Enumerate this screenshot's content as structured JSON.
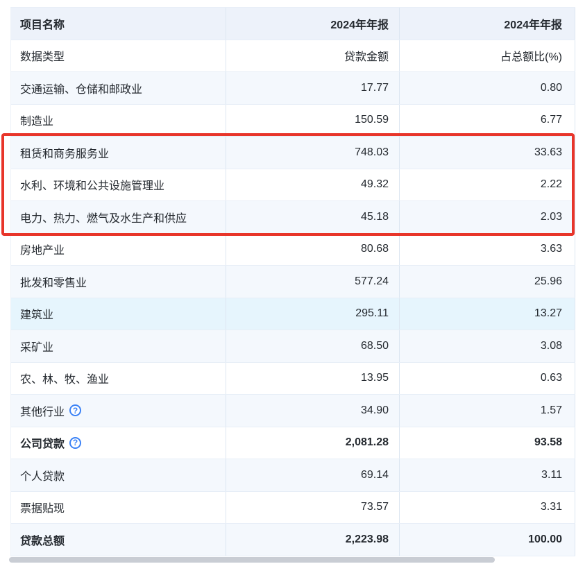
{
  "colors": {
    "header_row_bg": "#edf2fa",
    "stripe_row_bg": "#f4f8fd",
    "white_row_bg": "#ffffff",
    "highlight_row_bg": "#e6f5fd",
    "row_border": "#e7eef7",
    "column_divider": "#dce6f1",
    "text": "#24292f",
    "red_annotation_box": "#e8352a",
    "help_icon_blue": "#3b82f6",
    "scrollbar_thumb": "#c9cdd4"
  },
  "icons": {
    "help": "?"
  },
  "table": {
    "header": {
      "cells": [
        "项目名称",
        "2024年年报",
        "2024年年报"
      ]
    },
    "subheader": {
      "cells": [
        "数据类型",
        "贷款金额",
        "占总额比(%)"
      ]
    },
    "rows": [
      {
        "name": "交通运输、仓储和邮政业",
        "amount": "17.77",
        "pct": "0.80",
        "stripe": true
      },
      {
        "name": "制造业",
        "amount": "150.59",
        "pct": "6.77"
      },
      {
        "name": "租赁和商务服务业",
        "amount": "748.03",
        "pct": "33.63",
        "stripe": true,
        "in_red_box": true
      },
      {
        "name": "水利、环境和公共设施管理业",
        "amount": "49.32",
        "pct": "2.22",
        "in_red_box": true
      },
      {
        "name": "电力、热力、燃气及水生产和供应",
        "amount": "45.18",
        "pct": "2.03",
        "stripe": true,
        "in_red_box": true
      },
      {
        "name": "房地产业",
        "amount": "80.68",
        "pct": "3.63"
      },
      {
        "name": "批发和零售业",
        "amount": "577.24",
        "pct": "25.96",
        "stripe": true
      },
      {
        "name": "建筑业",
        "amount": "295.11",
        "pct": "13.27",
        "highlighted": true
      },
      {
        "name": "采矿业",
        "amount": "68.50",
        "pct": "3.08",
        "stripe": true
      },
      {
        "name": "农、林、牧、渔业",
        "amount": "13.95",
        "pct": "0.63"
      },
      {
        "name": "其他行业",
        "amount": "34.90",
        "pct": "1.57",
        "stripe": true,
        "help_icon": true
      },
      {
        "name": "公司贷款",
        "amount": "2,081.28",
        "pct": "93.58",
        "bold": true,
        "help_icon": true
      },
      {
        "name": "个人贷款",
        "amount": "69.14",
        "pct": "3.11",
        "stripe": true
      },
      {
        "name": "票据贴现",
        "amount": "73.57",
        "pct": "3.31"
      },
      {
        "name": "贷款总额",
        "amount": "2,223.98",
        "pct": "100.00",
        "bold": true,
        "stripe": true
      }
    ]
  }
}
